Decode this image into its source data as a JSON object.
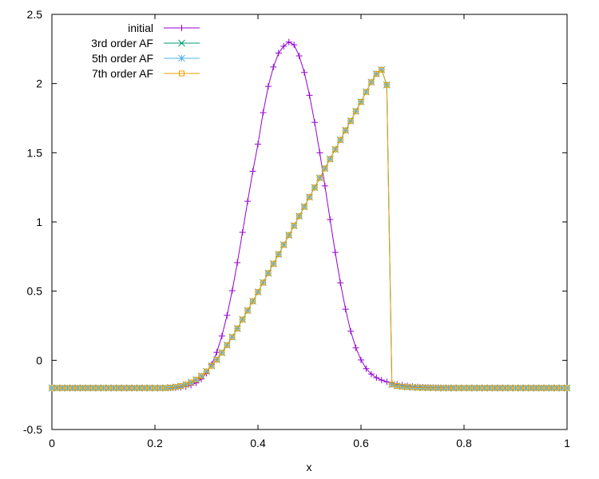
{
  "chart_data": {
    "type": "line",
    "title": "",
    "xlabel": "x",
    "ylabel": "",
    "xlim": [
      0,
      1
    ],
    "ylim": [
      -0.5,
      2.5
    ],
    "x_ticks": [
      "0",
      "0.2",
      "0.4",
      "0.6",
      "0.8",
      "1"
    ],
    "y_ticks": [
      "-0.5",
      "0",
      "0.5",
      "1",
      "1.5",
      "2",
      "2.5"
    ],
    "x_tick_values": [
      0,
      0.2,
      0.4,
      0.6,
      0.8,
      1
    ],
    "y_tick_values": [
      -0.5,
      0,
      0.5,
      1,
      1.5,
      2,
      2.5
    ],
    "grid": false,
    "legend_position": "top-left",
    "series": [
      {
        "name": "initial",
        "color": "#9400d3",
        "marker": "plus",
        "x": [
          0.0,
          0.01,
          0.02,
          0.03,
          0.04,
          0.05,
          0.06,
          0.07,
          0.08,
          0.09,
          0.1,
          0.11,
          0.12,
          0.13,
          0.14,
          0.15,
          0.16,
          0.17,
          0.18,
          0.19,
          0.2,
          0.21,
          0.22,
          0.23,
          0.24,
          0.25,
          0.26,
          0.27,
          0.28,
          0.29,
          0.3,
          0.31,
          0.32,
          0.33,
          0.34,
          0.35,
          0.36,
          0.37,
          0.38,
          0.39,
          0.4,
          0.41,
          0.42,
          0.43,
          0.44,
          0.45,
          0.46,
          0.47,
          0.48,
          0.49,
          0.5,
          0.51,
          0.52,
          0.53,
          0.54,
          0.55,
          0.56,
          0.57,
          0.58,
          0.59,
          0.6,
          0.61,
          0.62,
          0.63,
          0.64,
          0.65,
          0.66,
          0.67,
          0.68,
          0.69,
          0.7,
          0.71,
          0.72,
          0.73,
          0.74,
          0.75,
          0.76,
          0.77,
          0.78,
          0.79,
          0.8,
          0.81,
          0.82,
          0.83,
          0.84,
          0.85,
          0.86,
          0.87,
          0.88,
          0.89,
          0.9,
          0.91,
          0.92,
          0.93,
          0.94,
          0.95,
          0.96,
          0.97,
          0.98,
          0.99,
          1.0
        ],
        "y": [
          -0.2,
          -0.2,
          -0.2,
          -0.2,
          -0.2,
          -0.2,
          -0.2,
          -0.2,
          -0.2,
          -0.2,
          -0.2,
          -0.2,
          -0.2,
          -0.2,
          -0.2,
          -0.2,
          -0.2,
          -0.2,
          -0.2,
          -0.2,
          -0.2,
          -0.2,
          -0.2,
          -0.199,
          -0.198,
          -0.195,
          -0.19,
          -0.18,
          -0.163,
          -0.135,
          -0.093,
          -0.03,
          0.058,
          0.176,
          0.325,
          0.503,
          0.706,
          0.925,
          1.149,
          1.366,
          1.562,
          1.79,
          1.98,
          2.12,
          2.22,
          2.27,
          2.3,
          2.28,
          2.2,
          2.08,
          1.915,
          1.72,
          1.5,
          1.26,
          1.017,
          0.78,
          0.56,
          0.37,
          0.21,
          0.09,
          0.003,
          -0.06,
          -0.1,
          -0.126,
          -0.143,
          -0.155,
          -0.165,
          -0.173,
          -0.18,
          -0.185,
          -0.189,
          -0.192,
          -0.194,
          -0.196,
          -0.197,
          -0.198,
          -0.199,
          -0.199,
          -0.2,
          -0.2,
          -0.2,
          -0.2,
          -0.2,
          -0.2,
          -0.2,
          -0.2,
          -0.2,
          -0.2,
          -0.2,
          -0.2,
          -0.2,
          -0.2,
          -0.2,
          -0.2,
          -0.2,
          -0.2,
          -0.2,
          -0.2,
          -0.2,
          -0.2,
          -0.2
        ]
      },
      {
        "name": "3rd order AF",
        "color": "#009e73",
        "marker": "cross",
        "x": [
          0.0,
          0.01,
          0.02,
          0.03,
          0.04,
          0.05,
          0.06,
          0.07,
          0.08,
          0.09,
          0.1,
          0.11,
          0.12,
          0.13,
          0.14,
          0.15,
          0.16,
          0.17,
          0.18,
          0.19,
          0.2,
          0.21,
          0.22,
          0.23,
          0.24,
          0.25,
          0.26,
          0.27,
          0.28,
          0.29,
          0.3,
          0.31,
          0.32,
          0.33,
          0.34,
          0.35,
          0.36,
          0.37,
          0.38,
          0.39,
          0.4,
          0.41,
          0.42,
          0.43,
          0.44,
          0.45,
          0.46,
          0.47,
          0.48,
          0.49,
          0.5,
          0.51,
          0.52,
          0.53,
          0.54,
          0.55,
          0.56,
          0.57,
          0.58,
          0.59,
          0.6,
          0.61,
          0.62,
          0.63,
          0.64,
          0.65,
          0.66,
          0.67,
          0.68,
          0.69,
          0.7,
          0.71,
          0.72,
          0.73,
          0.74,
          0.75,
          0.76,
          0.77,
          0.78,
          0.79,
          0.8,
          0.81,
          0.82,
          0.83,
          0.84,
          0.85,
          0.86,
          0.87,
          0.88,
          0.89,
          0.9,
          0.91,
          0.92,
          0.93,
          0.94,
          0.95,
          0.96,
          0.97,
          0.98,
          0.99,
          1.0
        ],
        "y": [
          -0.2,
          -0.2,
          -0.2,
          -0.2,
          -0.2,
          -0.2,
          -0.2,
          -0.2,
          -0.2,
          -0.2,
          -0.2,
          -0.2,
          -0.2,
          -0.2,
          -0.2,
          -0.2,
          -0.2,
          -0.2,
          -0.2,
          -0.2,
          -0.2,
          -0.2,
          -0.2,
          -0.197,
          -0.193,
          -0.186,
          -0.175,
          -0.16,
          -0.14,
          -0.113,
          -0.08,
          -0.04,
          0.005,
          0.055,
          0.11,
          0.168,
          0.23,
          0.295,
          0.36,
          0.427,
          0.494,
          0.562,
          0.63,
          0.698,
          0.766,
          0.835,
          0.904,
          0.973,
          1.042,
          1.11,
          1.18,
          1.249,
          1.318,
          1.387,
          1.455,
          1.524,
          1.593,
          1.662,
          1.73,
          1.8,
          1.868,
          1.94,
          2.01,
          2.07,
          2.1,
          1.99,
          -0.175,
          -0.185,
          -0.19,
          -0.193,
          -0.195,
          -0.197,
          -0.198,
          -0.199,
          -0.199,
          -0.2,
          -0.2,
          -0.2,
          -0.2,
          -0.2,
          -0.2,
          -0.2,
          -0.2,
          -0.2,
          -0.2,
          -0.2,
          -0.2,
          -0.2,
          -0.2,
          -0.2,
          -0.2,
          -0.2,
          -0.2,
          -0.2,
          -0.2,
          -0.2,
          -0.2,
          -0.2,
          -0.2,
          -0.2,
          -0.2
        ]
      },
      {
        "name": "5th order AF",
        "color": "#56b4e9",
        "marker": "star",
        "x": [
          0.0,
          0.01,
          0.02,
          0.03,
          0.04,
          0.05,
          0.06,
          0.07,
          0.08,
          0.09,
          0.1,
          0.11,
          0.12,
          0.13,
          0.14,
          0.15,
          0.16,
          0.17,
          0.18,
          0.19,
          0.2,
          0.21,
          0.22,
          0.23,
          0.24,
          0.25,
          0.26,
          0.27,
          0.28,
          0.29,
          0.3,
          0.31,
          0.32,
          0.33,
          0.34,
          0.35,
          0.36,
          0.37,
          0.38,
          0.39,
          0.4,
          0.41,
          0.42,
          0.43,
          0.44,
          0.45,
          0.46,
          0.47,
          0.48,
          0.49,
          0.5,
          0.51,
          0.52,
          0.53,
          0.54,
          0.55,
          0.56,
          0.57,
          0.58,
          0.59,
          0.6,
          0.61,
          0.62,
          0.63,
          0.64,
          0.65,
          0.66,
          0.67,
          0.68,
          0.69,
          0.7,
          0.71,
          0.72,
          0.73,
          0.74,
          0.75,
          0.76,
          0.77,
          0.78,
          0.79,
          0.8,
          0.81,
          0.82,
          0.83,
          0.84,
          0.85,
          0.86,
          0.87,
          0.88,
          0.89,
          0.9,
          0.91,
          0.92,
          0.93,
          0.94,
          0.95,
          0.96,
          0.97,
          0.98,
          0.99,
          1.0
        ],
        "y": [
          -0.2,
          -0.2,
          -0.2,
          -0.2,
          -0.2,
          -0.2,
          -0.2,
          -0.2,
          -0.2,
          -0.2,
          -0.2,
          -0.2,
          -0.2,
          -0.2,
          -0.2,
          -0.2,
          -0.2,
          -0.2,
          -0.2,
          -0.2,
          -0.2,
          -0.2,
          -0.2,
          -0.197,
          -0.193,
          -0.186,
          -0.175,
          -0.16,
          -0.14,
          -0.113,
          -0.08,
          -0.04,
          0.005,
          0.055,
          0.11,
          0.168,
          0.23,
          0.295,
          0.36,
          0.427,
          0.494,
          0.562,
          0.63,
          0.698,
          0.766,
          0.835,
          0.904,
          0.973,
          1.042,
          1.11,
          1.18,
          1.249,
          1.318,
          1.387,
          1.455,
          1.524,
          1.593,
          1.662,
          1.73,
          1.8,
          1.868,
          1.94,
          2.01,
          2.07,
          2.1,
          1.99,
          -0.175,
          -0.185,
          -0.19,
          -0.193,
          -0.195,
          -0.197,
          -0.198,
          -0.199,
          -0.199,
          -0.2,
          -0.2,
          -0.2,
          -0.2,
          -0.2,
          -0.2,
          -0.2,
          -0.2,
          -0.2,
          -0.2,
          -0.2,
          -0.2,
          -0.2,
          -0.2,
          -0.2,
          -0.2,
          -0.2,
          -0.2,
          -0.2,
          -0.2,
          -0.2,
          -0.2,
          -0.2,
          -0.2,
          -0.2,
          -0.2
        ]
      },
      {
        "name": "7th order AF",
        "color": "#e69f00",
        "marker": "square",
        "x": [
          0.0,
          0.01,
          0.02,
          0.03,
          0.04,
          0.05,
          0.06,
          0.07,
          0.08,
          0.09,
          0.1,
          0.11,
          0.12,
          0.13,
          0.14,
          0.15,
          0.16,
          0.17,
          0.18,
          0.19,
          0.2,
          0.21,
          0.22,
          0.23,
          0.24,
          0.25,
          0.26,
          0.27,
          0.28,
          0.29,
          0.3,
          0.31,
          0.32,
          0.33,
          0.34,
          0.35,
          0.36,
          0.37,
          0.38,
          0.39,
          0.4,
          0.41,
          0.42,
          0.43,
          0.44,
          0.45,
          0.46,
          0.47,
          0.48,
          0.49,
          0.5,
          0.51,
          0.52,
          0.53,
          0.54,
          0.55,
          0.56,
          0.57,
          0.58,
          0.59,
          0.6,
          0.61,
          0.62,
          0.63,
          0.64,
          0.65,
          0.66,
          0.67,
          0.68,
          0.69,
          0.7,
          0.71,
          0.72,
          0.73,
          0.74,
          0.75,
          0.76,
          0.77,
          0.78,
          0.79,
          0.8,
          0.81,
          0.82,
          0.83,
          0.84,
          0.85,
          0.86,
          0.87,
          0.88,
          0.89,
          0.9,
          0.91,
          0.92,
          0.93,
          0.94,
          0.95,
          0.96,
          0.97,
          0.98,
          0.99,
          1.0
        ],
        "y": [
          -0.2,
          -0.2,
          -0.2,
          -0.2,
          -0.2,
          -0.2,
          -0.2,
          -0.2,
          -0.2,
          -0.2,
          -0.2,
          -0.2,
          -0.2,
          -0.2,
          -0.2,
          -0.2,
          -0.2,
          -0.2,
          -0.2,
          -0.2,
          -0.2,
          -0.2,
          -0.2,
          -0.197,
          -0.193,
          -0.186,
          -0.175,
          -0.16,
          -0.14,
          -0.113,
          -0.08,
          -0.04,
          0.005,
          0.055,
          0.11,
          0.168,
          0.23,
          0.295,
          0.36,
          0.427,
          0.494,
          0.562,
          0.63,
          0.698,
          0.766,
          0.835,
          0.904,
          0.973,
          1.042,
          1.11,
          1.18,
          1.249,
          1.318,
          1.387,
          1.455,
          1.524,
          1.593,
          1.662,
          1.73,
          1.8,
          1.868,
          1.94,
          2.01,
          2.07,
          2.1,
          1.99,
          -0.175,
          -0.185,
          -0.19,
          -0.193,
          -0.195,
          -0.197,
          -0.198,
          -0.199,
          -0.199,
          -0.2,
          -0.2,
          -0.2,
          -0.2,
          -0.2,
          -0.2,
          -0.2,
          -0.2,
          -0.2,
          -0.2,
          -0.2,
          -0.2,
          -0.2,
          -0.2,
          -0.2,
          -0.2,
          -0.2,
          -0.2,
          -0.2,
          -0.2,
          -0.2,
          -0.2,
          -0.2,
          -0.2,
          -0.2,
          -0.2
        ]
      }
    ]
  }
}
